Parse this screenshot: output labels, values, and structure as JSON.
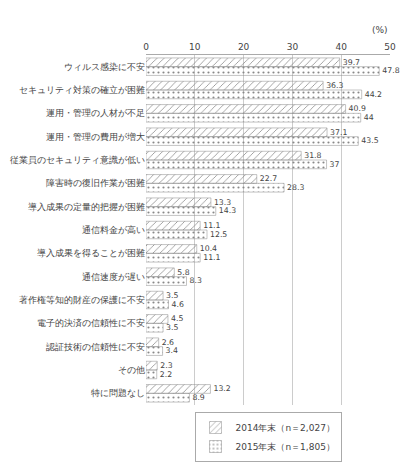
{
  "chart_data": {
    "type": "bar",
    "orientation": "horizontal",
    "categories": [
      "ウィルス感染に不安",
      "セキュリティ対策の確立が困難",
      "運用・管理の人材が不足",
      "運用・管理の費用が増大",
      "従業員のセキュリティ意識が低い",
      "障害時の復旧作業が困難",
      "導入成果の定量的把握が困難",
      "通信料金が高い",
      "導入成果を得ることが困難",
      "通信速度が遅い",
      "著作権等知的財産の保護に不安",
      "電子的決済の信頼性に不安",
      "認証技術の信頼性に不安",
      "その他",
      "特に問題なし"
    ],
    "series": [
      {
        "name": "2014年末（n＝2,027）",
        "color": "#c8dc6e",
        "values": [
          39.7,
          36.3,
          40.9,
          37.1,
          31.8,
          22.7,
          13.3,
          11.1,
          10.4,
          5.8,
          3.5,
          4.5,
          2.6,
          2.3,
          13.2
        ]
      },
      {
        "name": "2015年末（n＝1,805）",
        "color": "#f07850",
        "values": [
          47.8,
          44.2,
          44.0,
          43.5,
          37.0,
          28.3,
          14.3,
          12.5,
          11.1,
          8.3,
          4.6,
          3.5,
          3.4,
          2.2,
          8.9
        ]
      }
    ],
    "annotations": [
      "(%)"
    ],
    "xlim": [
      0,
      50
    ],
    "xticks": [
      0,
      10,
      20,
      30,
      40,
      50
    ],
    "grid": true,
    "legend": "bottom",
    "data_labels": true
  }
}
